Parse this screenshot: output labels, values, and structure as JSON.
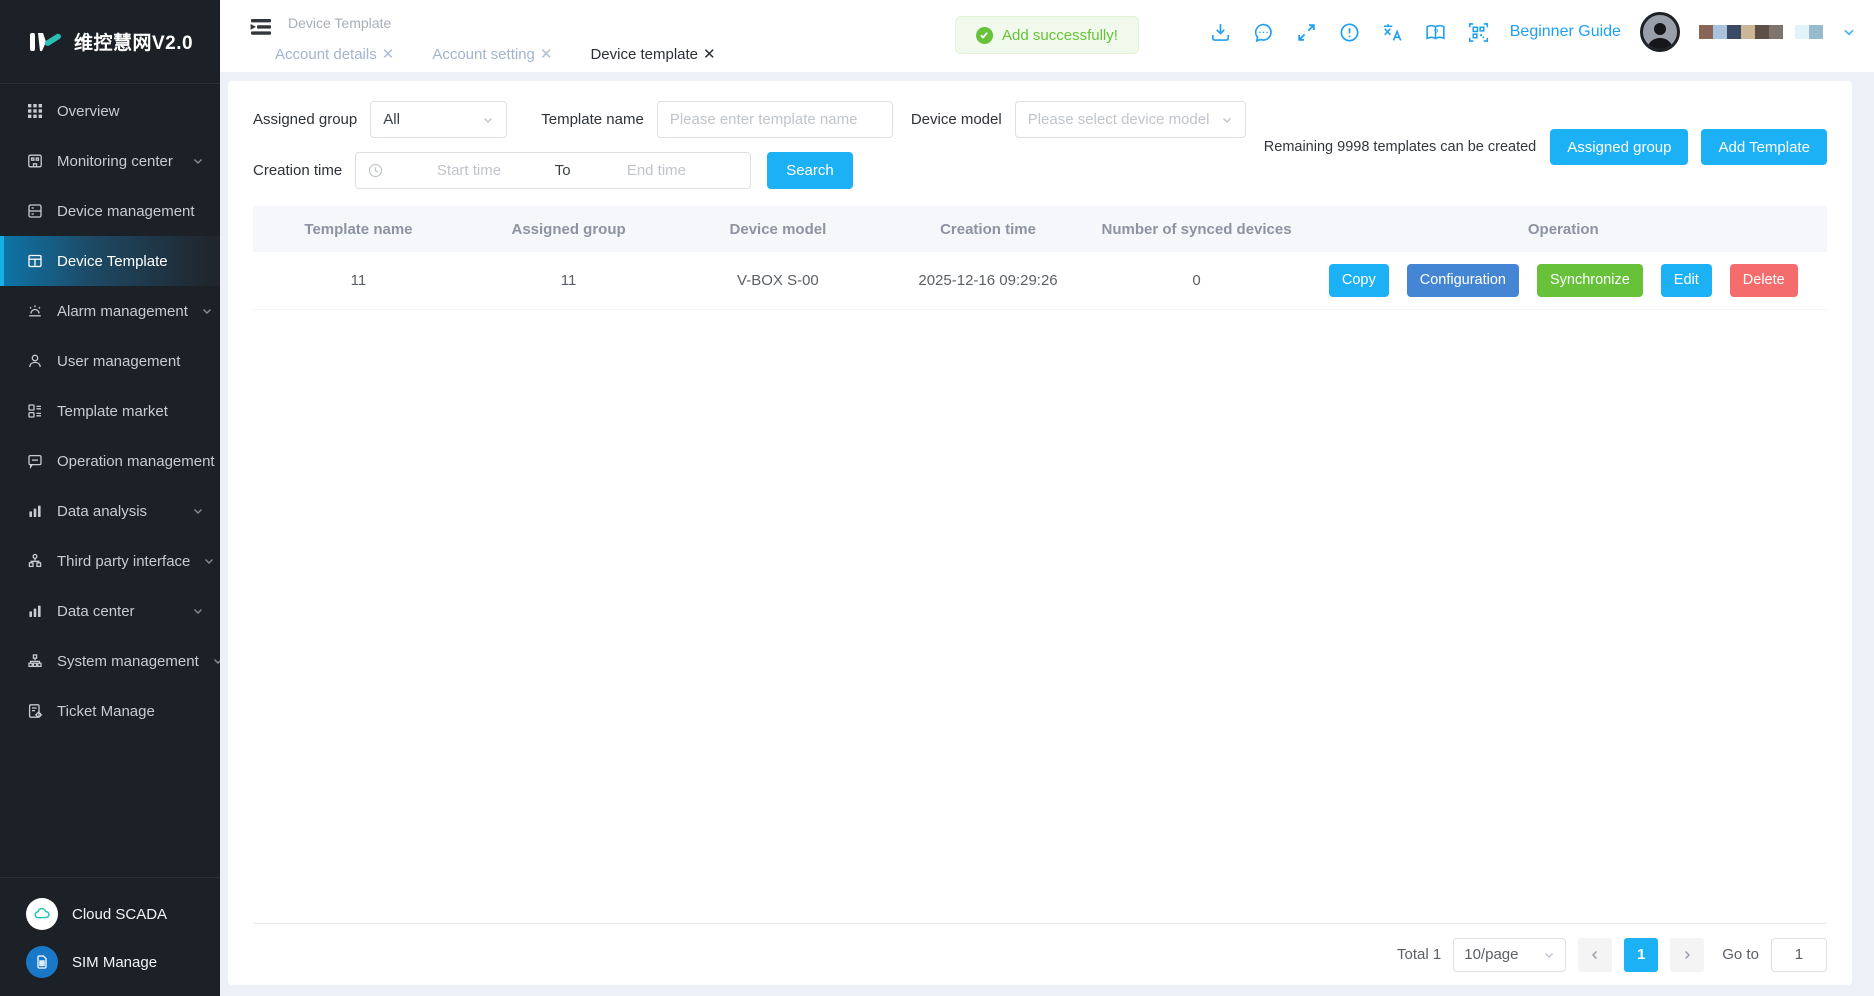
{
  "colors": {
    "primary": "#1cb1f5",
    "config_blue": "#4486d4",
    "success_green": "#67c23a",
    "danger_red": "#f56c6c",
    "icon_blue": "#1e9ff2",
    "sidebar_bg": "#1c2127",
    "active_accent": "#17b0e2"
  },
  "sidebar": {
    "logo_text": "维控慧网V2.0",
    "items": [
      {
        "label": "Overview",
        "icon": "overview-grid-icon",
        "expandable": false,
        "active": false
      },
      {
        "label": "Monitoring center",
        "icon": "monitoring-icon",
        "expandable": true,
        "active": false
      },
      {
        "label": "Device management",
        "icon": "device-management-icon",
        "expandable": false,
        "active": false
      },
      {
        "label": "Device Template",
        "icon": "device-template-icon",
        "expandable": false,
        "active": true
      },
      {
        "label": "Alarm management",
        "icon": "alarm-icon",
        "expandable": true,
        "active": false
      },
      {
        "label": "User management",
        "icon": "user-icon",
        "expandable": false,
        "active": false
      },
      {
        "label": "Template market",
        "icon": "template-market-icon",
        "expandable": false,
        "active": false
      },
      {
        "label": "Operation management",
        "icon": "operation-icon",
        "expandable": false,
        "active": false
      },
      {
        "label": "Data analysis",
        "icon": "bar-chart-icon",
        "expandable": true,
        "active": false
      },
      {
        "label": "Third party interface",
        "icon": "org-tree-icon",
        "expandable": true,
        "active": false
      },
      {
        "label": "Data center",
        "icon": "bar-chart-icon",
        "expandable": true,
        "active": false
      },
      {
        "label": "System management",
        "icon": "hierarchy-icon",
        "expandable": true,
        "active": false
      },
      {
        "label": "Ticket Manage",
        "icon": "ticket-icon",
        "expandable": false,
        "active": false
      }
    ],
    "footer": {
      "cloud_scada": "Cloud SCADA",
      "sim_manage": "SIM Manage"
    }
  },
  "topbar": {
    "breadcrumb": "Device Template",
    "tabs": [
      {
        "label": "Account details",
        "active": false
      },
      {
        "label": "Account setting",
        "active": false
      },
      {
        "label": "Device template",
        "active": true
      }
    ],
    "close_glyph": "✕",
    "toast_text": "Add successfully!",
    "beginner_guide": "Beginner Guide",
    "icon_names": [
      "download-icon",
      "message-icon",
      "fullscreen-icon",
      "warning-icon",
      "translate-icon",
      "help-book-icon",
      "qr-code-icon"
    ],
    "redacted_blocks": [
      "#8a6455",
      "#a9c3dd",
      "#3c4a66",
      "#cdb598",
      "#5c5049",
      "#80756e",
      "gap",
      "#dff3f8",
      "#96bccc"
    ]
  },
  "filters": {
    "assigned_group_label": "Assigned group",
    "assigned_group_value": "All",
    "template_name_label": "Template name",
    "template_name_placeholder": "Please enter template name",
    "device_model_label": "Device model",
    "device_model_placeholder": "Please select device model",
    "creation_time_label": "Creation time",
    "start_placeholder": "Start time",
    "to_label": "To",
    "end_placeholder": "End time",
    "search_label": "Search",
    "remaining_text": "Remaining 9998 templates can be created",
    "assigned_group_button": "Assigned group",
    "add_template_button": "Add Template"
  },
  "table": {
    "headers": [
      "Template name",
      "Assigned group",
      "Device model",
      "Creation time",
      "Number of synced devices",
      "Operation"
    ],
    "rows": [
      {
        "template_name": "11",
        "assigned_group": "11",
        "device_model": "V-BOX S-00",
        "creation_time": "2025-12-16 09:29:26",
        "synced_devices": "0"
      }
    ],
    "actions": {
      "copy": "Copy",
      "configuration": "Configuration",
      "synchronize": "Synchronize",
      "edit": "Edit",
      "delete": "Delete"
    }
  },
  "pagination": {
    "total_text": "Total 1",
    "per_page": "10/page",
    "current_page": "1",
    "goto_label": "Go to",
    "goto_value": "1"
  }
}
